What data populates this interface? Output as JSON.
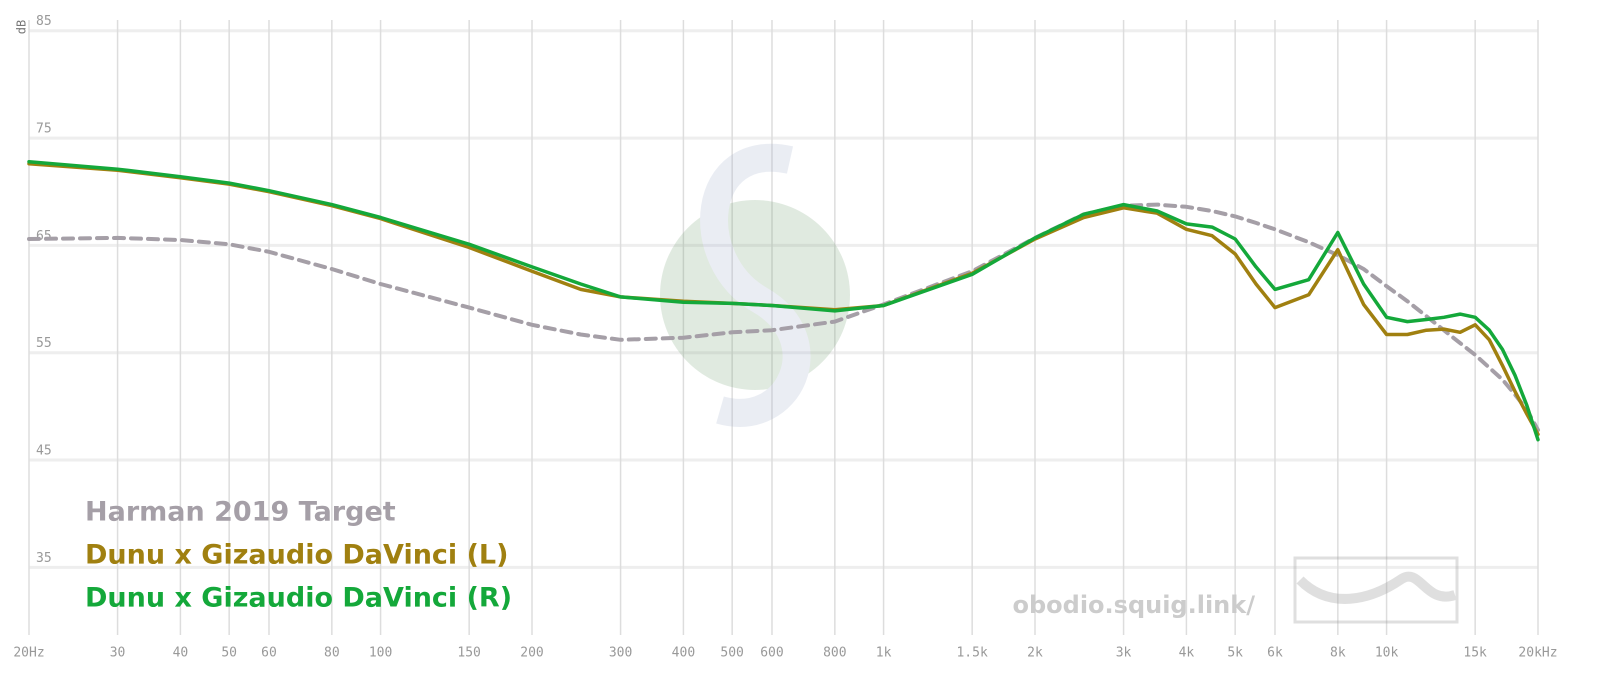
{
  "chart_data": {
    "type": "line",
    "x_scale": "log",
    "y_label": "dB",
    "x": [
      20,
      30,
      40,
      50,
      60,
      80,
      100,
      150,
      200,
      250,
      300,
      400,
      500,
      600,
      800,
      1000,
      1500,
      2000,
      2500,
      3000,
      3500,
      4000,
      4500,
      5000,
      5500,
      6000,
      7000,
      8000,
      9000,
      10000,
      11000,
      12000,
      13000,
      14000,
      15000,
      16000,
      17000,
      18000,
      19000,
      20000
    ],
    "series": [
      {
        "name": "Harman 2019 Target",
        "color": "#a59fa7",
        "dashed": true,
        "values": [
          65.6,
          65.7,
          65.5,
          65.1,
          64.4,
          62.8,
          61.4,
          59.2,
          57.6,
          56.7,
          56.2,
          56.4,
          56.9,
          57.1,
          57.9,
          59.5,
          62.6,
          65.7,
          67.9,
          68.7,
          68.8,
          68.6,
          68.2,
          67.7,
          67.1,
          66.5,
          65.3,
          64.1,
          62.8,
          61.2,
          59.8,
          58.4,
          57.1,
          55.9,
          54.8,
          53.6,
          52.5,
          51.1,
          49.7,
          47.8
        ]
      },
      {
        "name": "Dunu x Gizaudio DaVinci (L)",
        "color": "#a08010",
        "dashed": false,
        "values": [
          72.6,
          72.0,
          71.3,
          70.7,
          70.0,
          68.7,
          67.5,
          64.8,
          62.6,
          60.9,
          60.2,
          59.8,
          59.6,
          59.4,
          59.0,
          59.4,
          62.4,
          65.6,
          67.6,
          68.5,
          68.0,
          66.5,
          65.9,
          64.2,
          61.4,
          59.2,
          60.4,
          64.6,
          59.5,
          56.7,
          56.7,
          57.1,
          57.2,
          56.9,
          57.6,
          56.2,
          53.8,
          51.4,
          49.3,
          47.4
        ]
      },
      {
        "name": "Dunu x Gizaudio DaVinci (R)",
        "color": "#14a83a",
        "dashed": false,
        "values": [
          72.8,
          72.1,
          71.4,
          70.8,
          70.1,
          68.8,
          67.6,
          65.1,
          63.0,
          61.4,
          60.2,
          59.7,
          59.6,
          59.4,
          58.9,
          59.4,
          62.3,
          65.7,
          67.9,
          68.8,
          68.2,
          67.0,
          66.7,
          65.6,
          63.0,
          60.9,
          61.8,
          66.2,
          61.4,
          58.3,
          57.9,
          58.1,
          58.3,
          58.6,
          58.3,
          57.1,
          55.3,
          52.9,
          50.1,
          46.9
        ]
      }
    ],
    "xlim": [
      20,
      20000
    ],
    "ylim": [
      28.7,
      86
    ],
    "xticks": [
      {
        "value": 20,
        "label": "20Hz"
      },
      30,
      40,
      50,
      60,
      80,
      100,
      150,
      200,
      300,
      400,
      500,
      600,
      800,
      {
        "value": 1000,
        "label": "1k"
      },
      {
        "value": 1500,
        "label": "1.5k"
      },
      {
        "value": 2000,
        "label": "2k"
      },
      {
        "value": 3000,
        "label": "3k"
      },
      {
        "value": 4000,
        "label": "4k"
      },
      {
        "value": 5000,
        "label": "5k"
      },
      {
        "value": 6000,
        "label": "6k"
      },
      {
        "value": 8000,
        "label": "8k"
      },
      {
        "value": 10000,
        "label": "10k"
      },
      {
        "value": 15000,
        "label": "15k"
      },
      {
        "value": 20000,
        "label": "20kHz"
      }
    ],
    "yticks": [
      35,
      45,
      55,
      65,
      75,
      85
    ],
    "grid": true,
    "legend": "lower left",
    "watermark": "obodio.squig.link/"
  }
}
